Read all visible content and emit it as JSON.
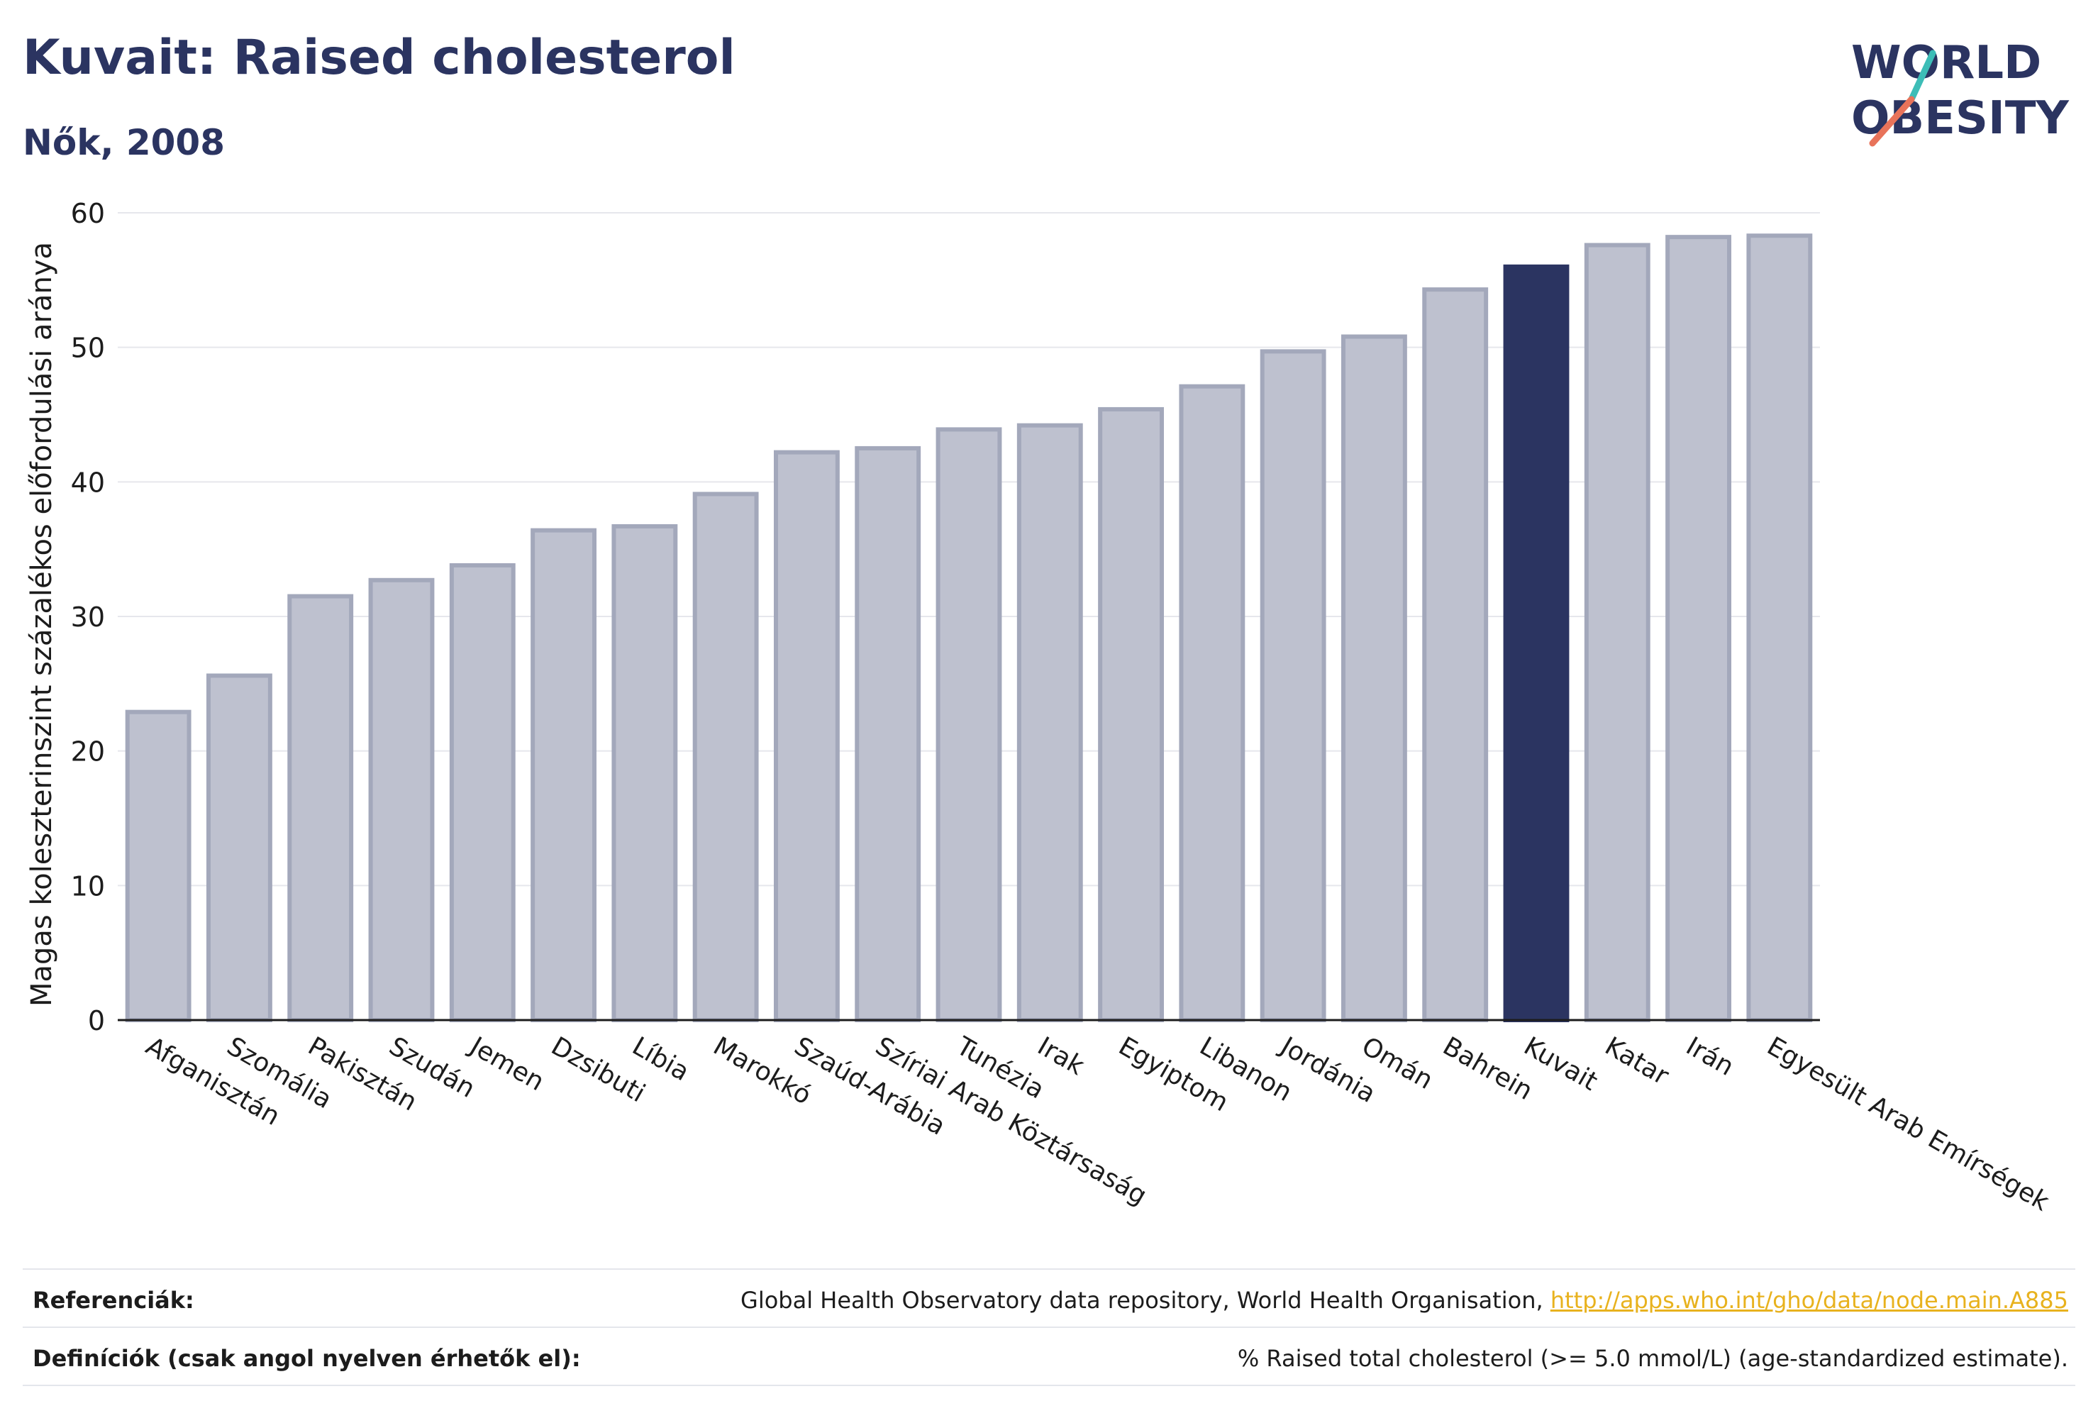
{
  "header": {
    "title": "Kuvait: Raised cholesterol",
    "subtitle": "Nők, 2008"
  },
  "logo": {
    "line1": "WORLD",
    "line2": "OBESITY"
  },
  "colors": {
    "highlight": "#2b3461",
    "bar_fill": "#bec1cf",
    "bar_stroke": "#a3a8bb",
    "grid": "#e6e7ec",
    "logo_red": "#e8735a",
    "logo_teal": "#3dbdb7"
  },
  "chart_data": {
    "type": "bar",
    "ylabel": "Magas koleszterinszint százalékos előfordulási aránya",
    "ylim": [
      0,
      60
    ],
    "yticks": [
      0,
      10,
      20,
      30,
      40,
      50,
      60
    ],
    "grid": true,
    "highlight": "Kuvait",
    "categories": [
      "Afganisztán",
      "Szomália",
      "Pakisztán",
      "Szudán",
      "Jemen",
      "Dzsibuti",
      "Líbia",
      "Marokkó",
      "Szaúd-Arábia",
      "Szíriai Arab Köztársaság",
      "Tunézia",
      "Irak",
      "Egyiptom",
      "Libanon",
      "Jordánia",
      "Omán",
      "Bahrein",
      "Kuvait",
      "Katar",
      "Irán",
      "Egyesült Arab Emírségek"
    ],
    "values": [
      22.9,
      25.6,
      31.5,
      32.7,
      33.8,
      36.4,
      36.7,
      39.1,
      42.2,
      42.5,
      43.9,
      44.2,
      45.4,
      47.1,
      49.7,
      50.8,
      54.3,
      56.0,
      57.6,
      58.2,
      58.3
    ]
  },
  "footer": {
    "references_label": "Referenciák:",
    "references_text": "Global Health Observatory data repository, World Health Organisation, ",
    "references_link": "http://apps.who.int/gho/data/node.main.A885",
    "definitions_label": "Definíciók (csak angol nyelven érhetők el):",
    "definitions_text": "% Raised total cholesterol (>= 5.0 mmol/L) (age-standardized estimate)."
  }
}
